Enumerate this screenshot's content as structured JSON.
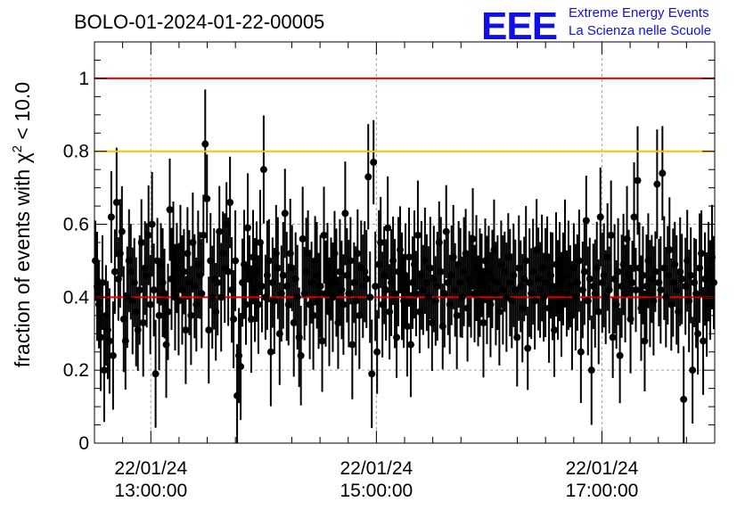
{
  "colors": {
    "points": "#000000",
    "red_line": "#e60000",
    "orange_line": "#ffc000",
    "logo": "#1010e6",
    "grid": "#a0a0a0"
  },
  "logo": {
    "mark": "EEE",
    "line1": "Extreme Energy Events",
    "line2": "La Scienza nelle Scuole"
  },
  "chart_data": {
    "type": "scatter",
    "title": "BOLO-01-2024-01-22-00005",
    "ylabel_prefix": "fraction of events with ",
    "ylabel_symbol": "χ",
    "ylabel_sup": "2",
    "ylabel_suffix": " < 10.0",
    "xlabel": "",
    "xlim": [
      "2024-01-22 12:30",
      "2024-01-22 18:00"
    ],
    "ylim": [
      0,
      1.1
    ],
    "y_ticks": [
      {
        "value": 0,
        "label": "0"
      },
      {
        "value": 0.2,
        "label": "0.2"
      },
      {
        "value": 0.4,
        "label": "0.4"
      },
      {
        "value": 0.6,
        "label": "0.6"
      },
      {
        "value": 0.8,
        "label": "0.8"
      },
      {
        "value": 1.0,
        "label": "1"
      }
    ],
    "x_ticks": [
      {
        "value": "2024-01-22 13:00",
        "date": "22/01/24",
        "time": "13:00:00"
      },
      {
        "value": "2024-01-22 15:00",
        "date": "22/01/24",
        "time": "15:00:00"
      },
      {
        "value": "2024-01-22 17:00",
        "date": "22/01/24",
        "time": "17:00:00"
      }
    ],
    "grid": true,
    "reference_lines": [
      {
        "y": 1.0,
        "color": "red"
      },
      {
        "y": 0.8,
        "color": "orange"
      },
      {
        "y": 0.4,
        "color": "red"
      }
    ],
    "series": [
      {
        "style": "points with vertical error bars",
        "start": "2024-01-22 12:30",
        "end": "2024-01-22 18:00",
        "values": [
          0.5,
          0.43,
          0.38,
          0.29,
          0.44,
          0.2,
          0.35,
          0.31,
          0.28,
          0.62,
          0.24,
          0.47,
          0.66,
          0.45,
          0.52,
          0.58,
          0.34,
          0.28,
          0.4,
          0.5,
          0.47,
          0.39,
          0.44,
          0.36,
          0.31,
          0.42,
          0.55,
          0.33,
          0.48,
          0.46,
          0.57,
          0.38,
          0.6,
          0.42,
          0.19,
          0.5,
          0.35,
          0.49,
          0.44,
          0.41,
          0.27,
          0.36,
          0.64,
          0.45,
          0.53,
          0.4,
          0.48,
          0.39,
          0.54,
          0.42,
          0.47,
          0.31,
          0.52,
          0.44,
          0.35,
          0.55,
          0.43,
          0.38,
          0.49,
          0.46,
          0.41,
          0.57,
          0.82,
          0.67,
          0.31,
          0.5,
          0.4,
          0.45,
          0.36,
          0.44,
          0.58,
          0.4,
          0.52,
          0.48,
          0.6,
          0.47,
          0.66,
          0.42,
          0.34,
          0.5,
          0.13,
          0.24,
          0.21,
          0.44,
          0.49,
          0.38,
          0.59,
          0.45,
          0.34,
          0.51,
          0.42,
          0.47,
          0.38,
          0.55,
          0.43,
          0.75,
          0.4,
          0.46,
          0.5,
          0.25,
          0.44,
          0.39,
          0.52,
          0.48,
          0.3,
          0.41,
          0.46,
          0.63,
          0.43,
          0.38,
          0.52,
          0.48,
          0.33,
          0.45,
          0.4,
          0.29,
          0.24,
          0.56,
          0.41,
          0.47,
          0.52,
          0.38,
          0.44,
          0.35,
          0.5,
          0.46,
          0.39,
          0.43,
          0.28,
          0.57,
          0.41,
          0.48,
          0.36,
          0.45,
          0.4,
          0.52,
          0.44,
          0.33,
          0.47,
          0.42,
          0.38,
          0.63,
          0.46,
          0.41,
          0.5,
          0.27,
          0.44,
          0.39,
          0.52,
          0.35,
          0.48,
          0.43,
          0.47,
          0.45,
          0.73,
          0.4,
          0.19,
          0.77,
          0.43,
          0.25,
          0.49,
          0.55,
          0.38,
          0.46,
          0.42,
          0.59,
          0.36,
          0.44,
          0.5,
          0.41,
          0.29,
          0.47,
          0.53,
          0.43,
          0.39,
          0.46,
          0.32,
          0.51,
          0.27,
          0.44,
          0.49,
          0.41,
          0.57,
          0.36,
          0.46,
          0.42,
          0.5,
          0.44,
          0.4,
          0.48,
          0.33,
          0.45,
          0.39,
          0.43,
          0.55,
          0.47,
          0.32,
          0.41,
          0.58,
          0.44,
          0.38,
          0.46,
          0.51,
          0.42,
          0.35,
          0.49,
          0.44,
          0.4,
          0.47,
          0.52,
          0.37,
          0.45,
          0.43,
          0.56,
          0.41,
          0.48,
          0.39,
          0.44,
          0.46,
          0.33,
          0.5,
          0.42,
          0.47,
          0.38,
          0.45,
          0.53,
          0.41,
          0.44,
          0.36,
          0.49,
          0.42,
          0.47,
          0.4,
          0.51,
          0.44,
          0.39,
          0.46,
          0.42,
          0.29,
          0.48,
          0.43,
          0.37,
          0.45,
          0.5,
          0.26,
          0.44,
          0.41,
          0.47,
          0.39,
          0.53,
          0.45,
          0.42,
          0.48,
          0.4,
          0.44,
          0.51,
          0.37,
          0.46,
          0.43,
          0.31,
          0.49,
          0.42,
          0.47,
          0.38,
          0.45,
          0.52,
          0.41,
          0.46,
          0.43,
          0.35,
          0.48,
          0.4,
          0.44,
          0.5,
          0.25,
          0.42,
          0.47,
          0.61,
          0.39,
          0.45,
          0.2,
          0.43,
          0.41,
          0.48,
          0.36,
          0.62,
          0.44,
          0.46,
          0.4,
          0.51,
          0.42,
          0.57,
          0.29,
          0.45,
          0.38,
          0.47,
          0.24,
          0.43,
          0.49,
          0.41,
          0.56,
          0.46,
          0.34,
          0.44,
          0.62,
          0.42,
          0.72,
          0.48,
          0.37,
          0.46,
          0.28,
          0.43,
          0.5,
          0.41,
          0.45,
          0.39,
          0.47,
          0.71,
          0.44,
          0.42,
          0.74,
          0.48,
          0.4,
          0.46,
          0.53,
          0.38,
          0.44,
          0.49,
          0.42,
          0.36,
          0.47,
          0.45,
          0.12,
          0.43,
          0.5,
          0.39,
          0.46,
          0.2,
          0.44,
          0.41,
          0.3,
          0.48,
          0.52,
          0.28,
          0.45,
          0.38,
          0.47,
          0.42,
          0.51,
          0.44
        ]
      }
    ]
  }
}
